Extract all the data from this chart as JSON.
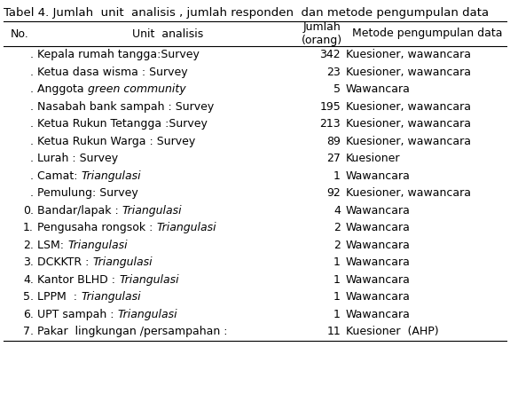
{
  "title": "Tabel 4. Jumlah  unit  analisis , jumlah responden  dan metode pengumpulan data",
  "col_headers": [
    "No.",
    "Unit  analisis",
    "Jumlah\n(orang)",
    "Metode pengumpulan data"
  ],
  "rows": [
    {
      "no": ".",
      "unit": [
        [
          "Kepala rumah tangga:Survey",
          false
        ]
      ],
      "jumlah": "342",
      "metode": "Kuesioner, wawancara"
    },
    {
      "no": ".",
      "unit": [
        [
          "Ketua dasa wisma : Survey",
          false
        ]
      ],
      "jumlah": "23",
      "metode": "Kuesioner, wawancara"
    },
    {
      "no": ".",
      "unit": [
        [
          "Anggota ",
          false
        ],
        [
          "green community",
          true
        ]
      ],
      "jumlah": "5",
      "metode": "Wawancara"
    },
    {
      "no": ".",
      "unit": [
        [
          "Nasabah bank sampah : Survey",
          false
        ]
      ],
      "jumlah": "195",
      "metode": "Kuesioner, wawancara"
    },
    {
      "no": ".",
      "unit": [
        [
          "Ketua Rukun Tetangga :Survey",
          false
        ]
      ],
      "jumlah": "213",
      "metode": "Kuesioner, wawancara"
    },
    {
      "no": ".",
      "unit": [
        [
          "Ketua Rukun Warga : Survey",
          false
        ]
      ],
      "jumlah": "89",
      "metode": "Kuesioner, wawancara"
    },
    {
      "no": ".",
      "unit": [
        [
          "Lurah : Survey",
          false
        ]
      ],
      "jumlah": "27",
      "metode": "Kuesioner"
    },
    {
      "no": ".",
      "unit": [
        [
          "Camat: ",
          false
        ],
        [
          "Triangulasi",
          true
        ]
      ],
      "jumlah": "1",
      "metode": "Wawancara"
    },
    {
      "no": ".",
      "unit": [
        [
          "Pemulung: Survey",
          false
        ]
      ],
      "jumlah": "92",
      "metode": "Kuesioner, wawancara"
    },
    {
      "no": "0.",
      "unit": [
        [
          "Bandar/lapak : ",
          false
        ],
        [
          "Triangulasi",
          true
        ]
      ],
      "jumlah": "4",
      "metode": "Wawancara"
    },
    {
      "no": "1.",
      "unit": [
        [
          "Pengusaha rongsok : ",
          false
        ],
        [
          "Triangulasi",
          true
        ]
      ],
      "jumlah": "2",
      "metode": "Wawancara"
    },
    {
      "no": "2.",
      "unit": [
        [
          "LSM: ",
          false
        ],
        [
          "Triangulasi",
          true
        ]
      ],
      "jumlah": "2",
      "metode": "Wawancara"
    },
    {
      "no": "3.",
      "unit": [
        [
          "DCKKTR : ",
          false
        ],
        [
          "Triangulasi",
          true
        ]
      ],
      "jumlah": "1",
      "metode": "Wawancara"
    },
    {
      "no": "4.",
      "unit": [
        [
          "Kantor BLHD : ",
          false
        ],
        [
          "Triangulasi",
          true
        ]
      ],
      "jumlah": "1",
      "metode": "Wawancara"
    },
    {
      "no": "5.",
      "unit": [
        [
          "LPPM  : ",
          false
        ],
        [
          "Triangulasi",
          true
        ]
      ],
      "jumlah": "1",
      "metode": "Wawancara"
    },
    {
      "no": "6.",
      "unit": [
        [
          "UPT sampah : ",
          false
        ],
        [
          "Triangulasi",
          true
        ]
      ],
      "jumlah": "1",
      "metode": "Wawancara"
    },
    {
      "no": "7.",
      "unit": [
        [
          "Pakar  lingkungan /persampahan :",
          false
        ]
      ],
      "jumlah": "11",
      "metode": "Kuesioner  (AHP)"
    }
  ],
  "font_size": 9.0,
  "title_font_size": 9.5,
  "bg_color": "#ffffff",
  "text_color": "#000000"
}
